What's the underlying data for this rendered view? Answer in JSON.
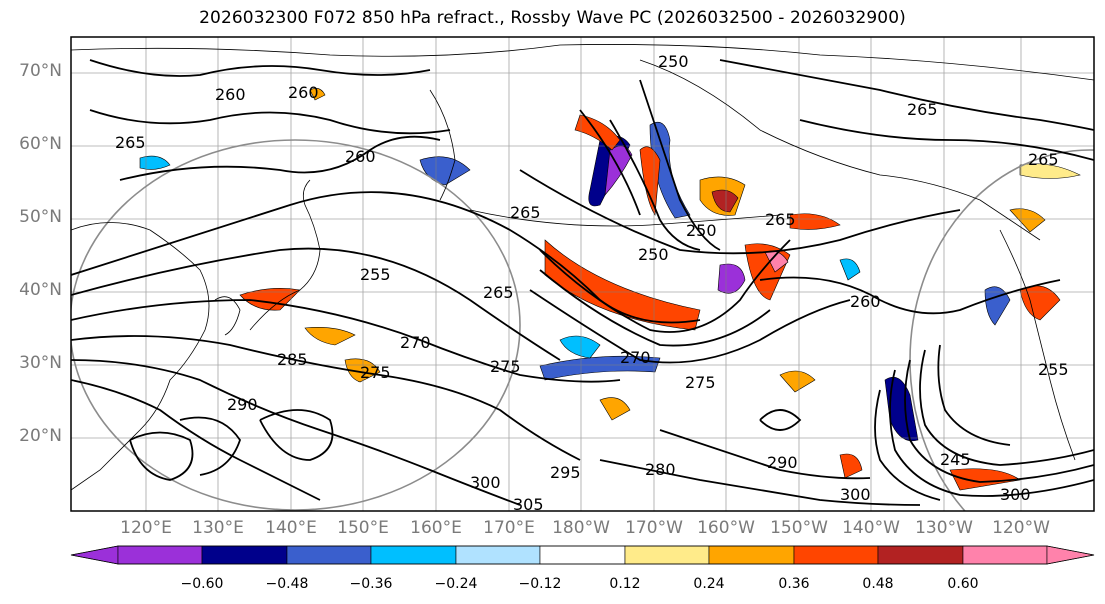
{
  "title": "2026032300 F072 850 hPa refract., Rossby Wave PC (2026032500 - 2026032900)",
  "latitude_labels": [
    "70°N",
    "60°N",
    "50°N",
    "40°N",
    "30°N",
    "20°N"
  ],
  "longitude_labels": [
    "120°E",
    "130°E",
    "140°E",
    "150°E",
    "160°E",
    "170°E",
    "180°W",
    "170°W",
    "160°W",
    "150°W",
    "140°W",
    "130°W",
    "120°W"
  ],
  "colorbar": {
    "ticks": [
      "−0.60",
      "−0.48",
      "−0.36",
      "−0.24",
      "−0.12",
      "0.12",
      "0.24",
      "0.36",
      "0.48",
      "0.60"
    ],
    "colors": [
      "#9b30d9",
      "#00008b",
      "#3a5fcd",
      "#00bfff",
      "#b0e2ff",
      "#ffffff",
      "#ffeb8a",
      "#ffa500",
      "#ff4500",
      "#b22222",
      "#ff82ab"
    ]
  },
  "contour_labels": [
    "250",
    "250",
    "250",
    "255",
    "255",
    "260",
    "260",
    "260",
    "260",
    "265",
    "265",
    "265",
    "265",
    "265",
    "265",
    "270",
    "270",
    "275",
    "275",
    "275",
    "280",
    "285",
    "290",
    "290",
    "295",
    "300",
    "300",
    "300",
    "305",
    "245"
  ]
}
